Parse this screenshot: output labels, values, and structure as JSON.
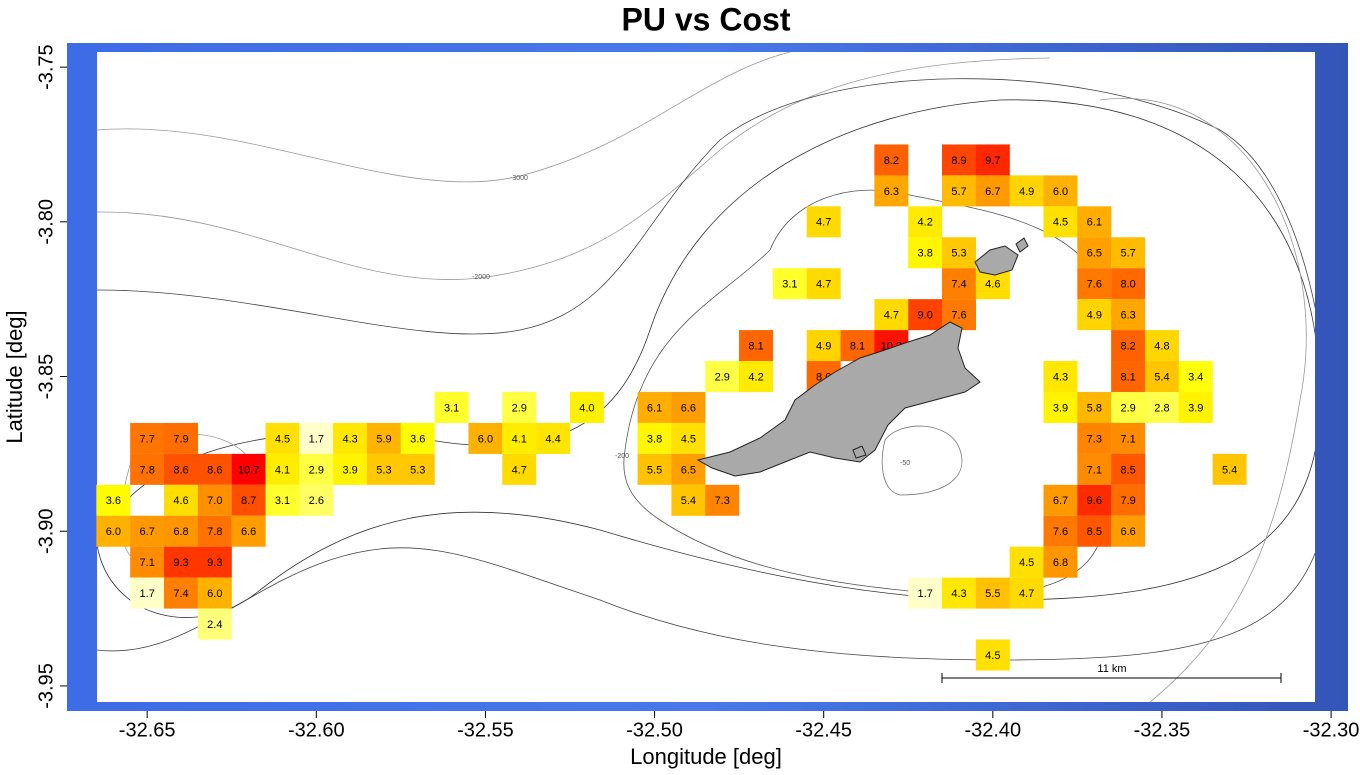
{
  "chart_data": {
    "type": "heatmap",
    "title": "PU vs Cost",
    "x_label": "Longitude [deg]",
    "y_label": "Latitude [deg]",
    "xlim": [
      -32.6737,
      -32.295
    ],
    "ylim": [
      -3.9581,
      -3.7422
    ],
    "xticks": [
      -32.65,
      {
        "value": -32.6,
        "label": "-32.60"
      },
      -32.55,
      {
        "value": -32.5,
        "label": "-32.50"
      },
      -32.45,
      {
        "value": -32.4,
        "label": "-32.40"
      },
      -32.35,
      {
        "value": -32.3,
        "label": "-32.30"
      }
    ],
    "yticks": [
      -3.75,
      {
        "value": -3.8,
        "label": "-3.80"
      },
      -3.85,
      {
        "value": -3.9,
        "label": "-3.90"
      },
      -3.95
    ],
    "colormap": [
      "#ffffc8",
      "#ffff00",
      "#ffc800",
      "#ff8c00",
      "#ff4600",
      "#ff0000"
    ],
    "scale_bar_label": "11 km",
    "contour_labels": [
      "-3000",
      "-2000",
      "-200",
      "-50"
    ],
    "x": [
      -32.43,
      -32.41,
      -32.4,
      -32.43,
      -32.41,
      -32.4,
      -32.39,
      -32.38,
      -32.45,
      -32.42,
      -32.38,
      -32.37,
      -32.42,
      -32.41,
      -32.37,
      -32.36,
      -32.46,
      -32.45,
      -32.41,
      -32.4,
      -32.37,
      -32.36,
      -32.43,
      -32.42,
      -32.41,
      -32.37,
      -32.36,
      -32.47,
      -32.45,
      -32.44,
      -32.43,
      -32.36,
      -32.35,
      -32.48,
      -32.47,
      -32.45,
      -32.38,
      -32.36,
      -32.35,
      -32.34,
      -32.56,
      -32.54,
      -32.52,
      -32.5,
      -32.49,
      -32.38,
      -32.37,
      -32.36,
      -32.35,
      -32.34,
      -32.65,
      -32.64,
      -32.61,
      -32.6,
      -32.59,
      -32.58,
      -32.57,
      -32.55,
      -32.54,
      -32.53,
      -32.5,
      -32.49,
      -32.37,
      -32.36,
      -32.65,
      -32.64,
      -32.63,
      -32.62,
      -32.61,
      -32.6,
      -32.59,
      -32.58,
      -32.57,
      -32.54,
      -32.5,
      -32.49,
      -32.37,
      -32.36,
      -32.33,
      -32.66,
      -32.64,
      -32.63,
      -32.62,
      -32.61,
      -32.6,
      -32.49,
      -32.48,
      -32.38,
      -32.37,
      -32.36,
      -32.66,
      -32.65,
      -32.64,
      -32.63,
      -32.62,
      -32.38,
      -32.37,
      -32.36,
      -32.65,
      -32.64,
      -32.63,
      -32.39,
      -32.38,
      -32.65,
      -32.64,
      -32.63,
      -32.42,
      -32.41,
      -32.4,
      -32.39,
      -32.63,
      -32.4
    ],
    "y": [
      -3.78,
      -3.78,
      -3.78,
      -3.79,
      -3.79,
      -3.79,
      -3.79,
      -3.79,
      -3.8,
      -3.8,
      -3.8,
      -3.8,
      -3.81,
      -3.81,
      -3.81,
      -3.81,
      -3.82,
      -3.82,
      -3.82,
      -3.82,
      -3.82,
      -3.82,
      -3.83,
      -3.83,
      -3.83,
      -3.83,
      -3.83,
      -3.84,
      -3.84,
      -3.84,
      -3.84,
      -3.84,
      -3.84,
      -3.85,
      -3.85,
      -3.85,
      -3.85,
      -3.85,
      -3.85,
      -3.85,
      -3.86,
      -3.86,
      -3.86,
      -3.86,
      -3.86,
      -3.86,
      -3.86,
      -3.86,
      -3.86,
      -3.86,
      -3.87,
      -3.87,
      -3.87,
      -3.87,
      -3.87,
      -3.87,
      -3.87,
      -3.87,
      -3.87,
      -3.87,
      -3.87,
      -3.87,
      -3.87,
      -3.87,
      -3.88,
      -3.88,
      -3.88,
      -3.88,
      -3.88,
      -3.88,
      -3.88,
      -3.88,
      -3.88,
      -3.88,
      -3.88,
      -3.88,
      -3.88,
      -3.88,
      -3.88,
      -3.89,
      -3.89,
      -3.89,
      -3.89,
      -3.89,
      -3.89,
      -3.89,
      -3.89,
      -3.89,
      -3.89,
      -3.89,
      -3.9,
      -3.9,
      -3.9,
      -3.9,
      -3.9,
      -3.9,
      -3.9,
      -3.9,
      -3.91,
      -3.91,
      -3.91,
      -3.91,
      -3.91,
      -3.92,
      -3.92,
      -3.92,
      -3.92,
      -3.92,
      -3.92,
      -3.92,
      -3.93,
      -3.94
    ],
    "values": [
      8.2,
      8.9,
      9.7,
      6.3,
      5.7,
      6.7,
      4.9,
      6,
      4.7,
      4.2,
      4.5,
      6.1,
      3.8,
      5.3,
      6.5,
      5.7,
      3.1,
      4.7,
      7.4,
      4.6,
      7.6,
      8,
      4.7,
      9,
      7.6,
      4.9,
      6.3,
      8.1,
      4.9,
      8.1,
      10.2,
      8.2,
      4.8,
      2.9,
      4.2,
      8,
      4.3,
      8.1,
      5.4,
      3.4,
      3.1,
      2.9,
      4,
      6.1,
      6.6,
      3.9,
      5.8,
      2.9,
      2.8,
      3.9,
      7.7,
      7.9,
      4.5,
      1.7,
      4.3,
      5.9,
      3.6,
      6,
      4.1,
      4.4,
      3.8,
      4.5,
      7.3,
      7.1,
      7.8,
      8.6,
      8.6,
      10.7,
      4.1,
      2.9,
      3.9,
      5.3,
      5.3,
      4.7,
      5.5,
      6.5,
      7.1,
      8.5,
      5.4,
      3.6,
      4.6,
      7,
      8.7,
      3.1,
      2.6,
      5.4,
      7.3,
      6.7,
      9.6,
      7.9,
      6,
      6.7,
      6.8,
      7.8,
      6.6,
      7.6,
      8.5,
      6.6,
      7.1,
      9.3,
      9.3,
      4.5,
      6.8,
      1.7,
      7.4,
      6,
      1.7,
      4.3,
      5.5,
      4.7,
      2.4,
      4.5
    ],
    "value_labels": [
      "8.2",
      "8.9",
      "9.7",
      "6.3",
      "5.7",
      "6.7",
      "4.9",
      "6.0",
      "4.7",
      "4.2",
      "4.5",
      "6.1",
      "3.8",
      "5.3",
      "6.5",
      "5.7",
      "3.1",
      "4.7",
      "7.4",
      "4.6",
      "7.6",
      "8.0",
      "4.7",
      "9.0",
      "7.6",
      "4.9",
      "6.3",
      "8.1",
      "4.9",
      "8.1",
      "10.2",
      "8.2",
      "4.8",
      "2.9",
      "4.2",
      "8.0",
      "4.3",
      "8.1",
      "5.4",
      "3.4",
      "3.1",
      "2.9",
      "4.0",
      "6.1",
      "6.6",
      "3.9",
      "5.8",
      "2.9",
      "2.8",
      "3.9",
      "7.7",
      "7.9",
      "4.5",
      "1.7",
      "4.3",
      "5.9",
      "3.6",
      "6.0",
      "4.1",
      "4.4",
      "3.8",
      "4.5",
      "7.3",
      "7.1",
      "7.8",
      "8.6",
      "8.6",
      "10.7",
      "4.1",
      "2.9",
      "3.9",
      "5.3",
      "5.3",
      "4.7",
      "5.5",
      "6.5",
      "7.1",
      "8.5",
      "5.4",
      "3.6",
      "4.6",
      "7.0",
      "8.7",
      "3.1",
      "2.6",
      "5.4",
      "7.3",
      "6.7",
      "9.6",
      "7.9",
      "6.0",
      "6.7",
      "6.8",
      "7.8",
      "6.6",
      "7.6",
      "8.5",
      "6.6",
      "7.1",
      "9.3",
      "9.3",
      "4.5",
      "6.8",
      "1.7",
      "7.4",
      "6.0",
      "1.7",
      "4.3",
      "5.5",
      "4.7",
      "2.4",
      "4.5"
    ]
  }
}
